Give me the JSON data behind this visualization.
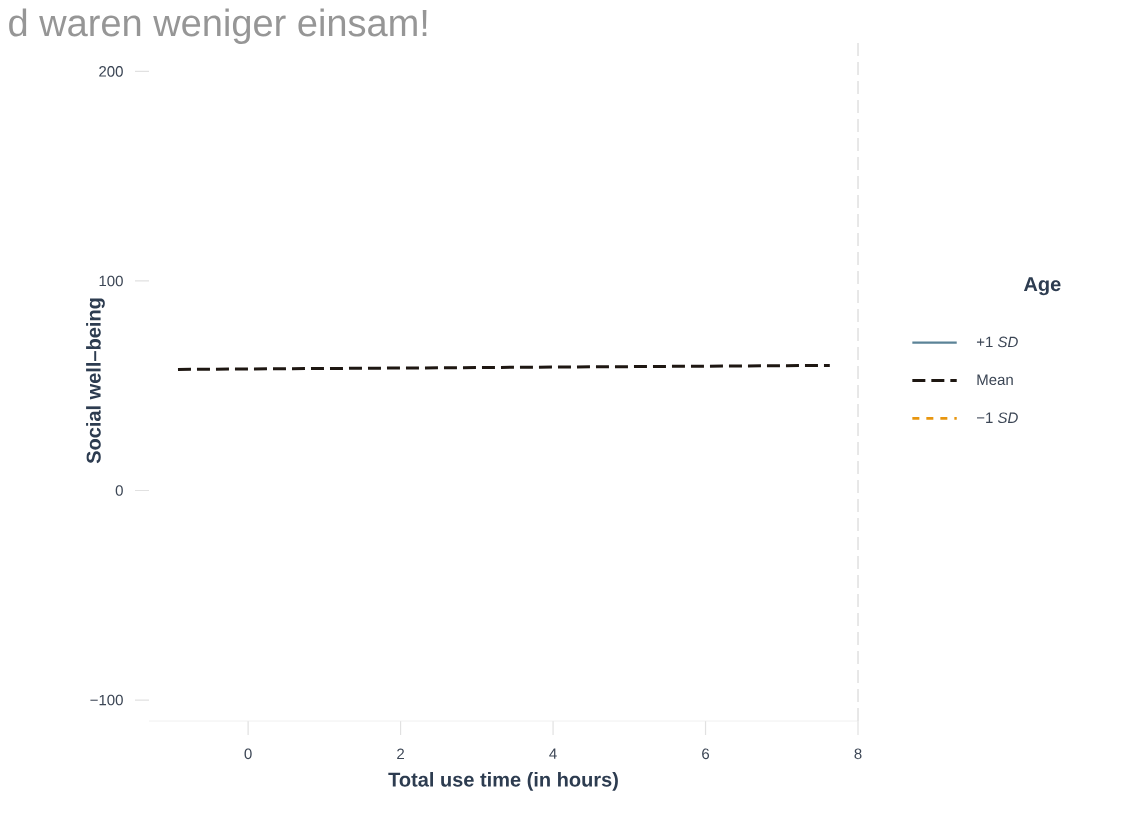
{
  "chart_data": {
    "type": "line",
    "title": "d waren weniger einsam!",
    "xlabel": "Total use time (in hours)",
    "ylabel": "Social well–being",
    "legend_title": "Age",
    "x": [
      -0.92,
      7.63
    ],
    "series": [
      {
        "name": "+1 *SD*",
        "color": "#5b8397",
        "line_style": "solid",
        "values": [
          null,
          null
        ]
      },
      {
        "name": "Mean",
        "color": "#1e1712",
        "line_style": "dashed",
        "values": [
          57.8,
          59.7
        ]
      },
      {
        "name": "−1 *SD*",
        "color": "#e8960f",
        "line_style": "dotted",
        "values": [
          null,
          null
        ]
      }
    ],
    "xlim": [
      -1.3,
      8
    ],
    "ylim": [
      -110,
      215
    ],
    "xticks": [
      0,
      2,
      4,
      6,
      8
    ],
    "yticks": [
      {
        "value": -100,
        "label": "−100"
      },
      0,
      100,
      200
    ],
    "ref_lines": [
      {
        "axis": "x",
        "value": 8,
        "color": "#e0e0e0",
        "line_style": "dashed"
      }
    ],
    "grid": false,
    "legend": "right"
  }
}
